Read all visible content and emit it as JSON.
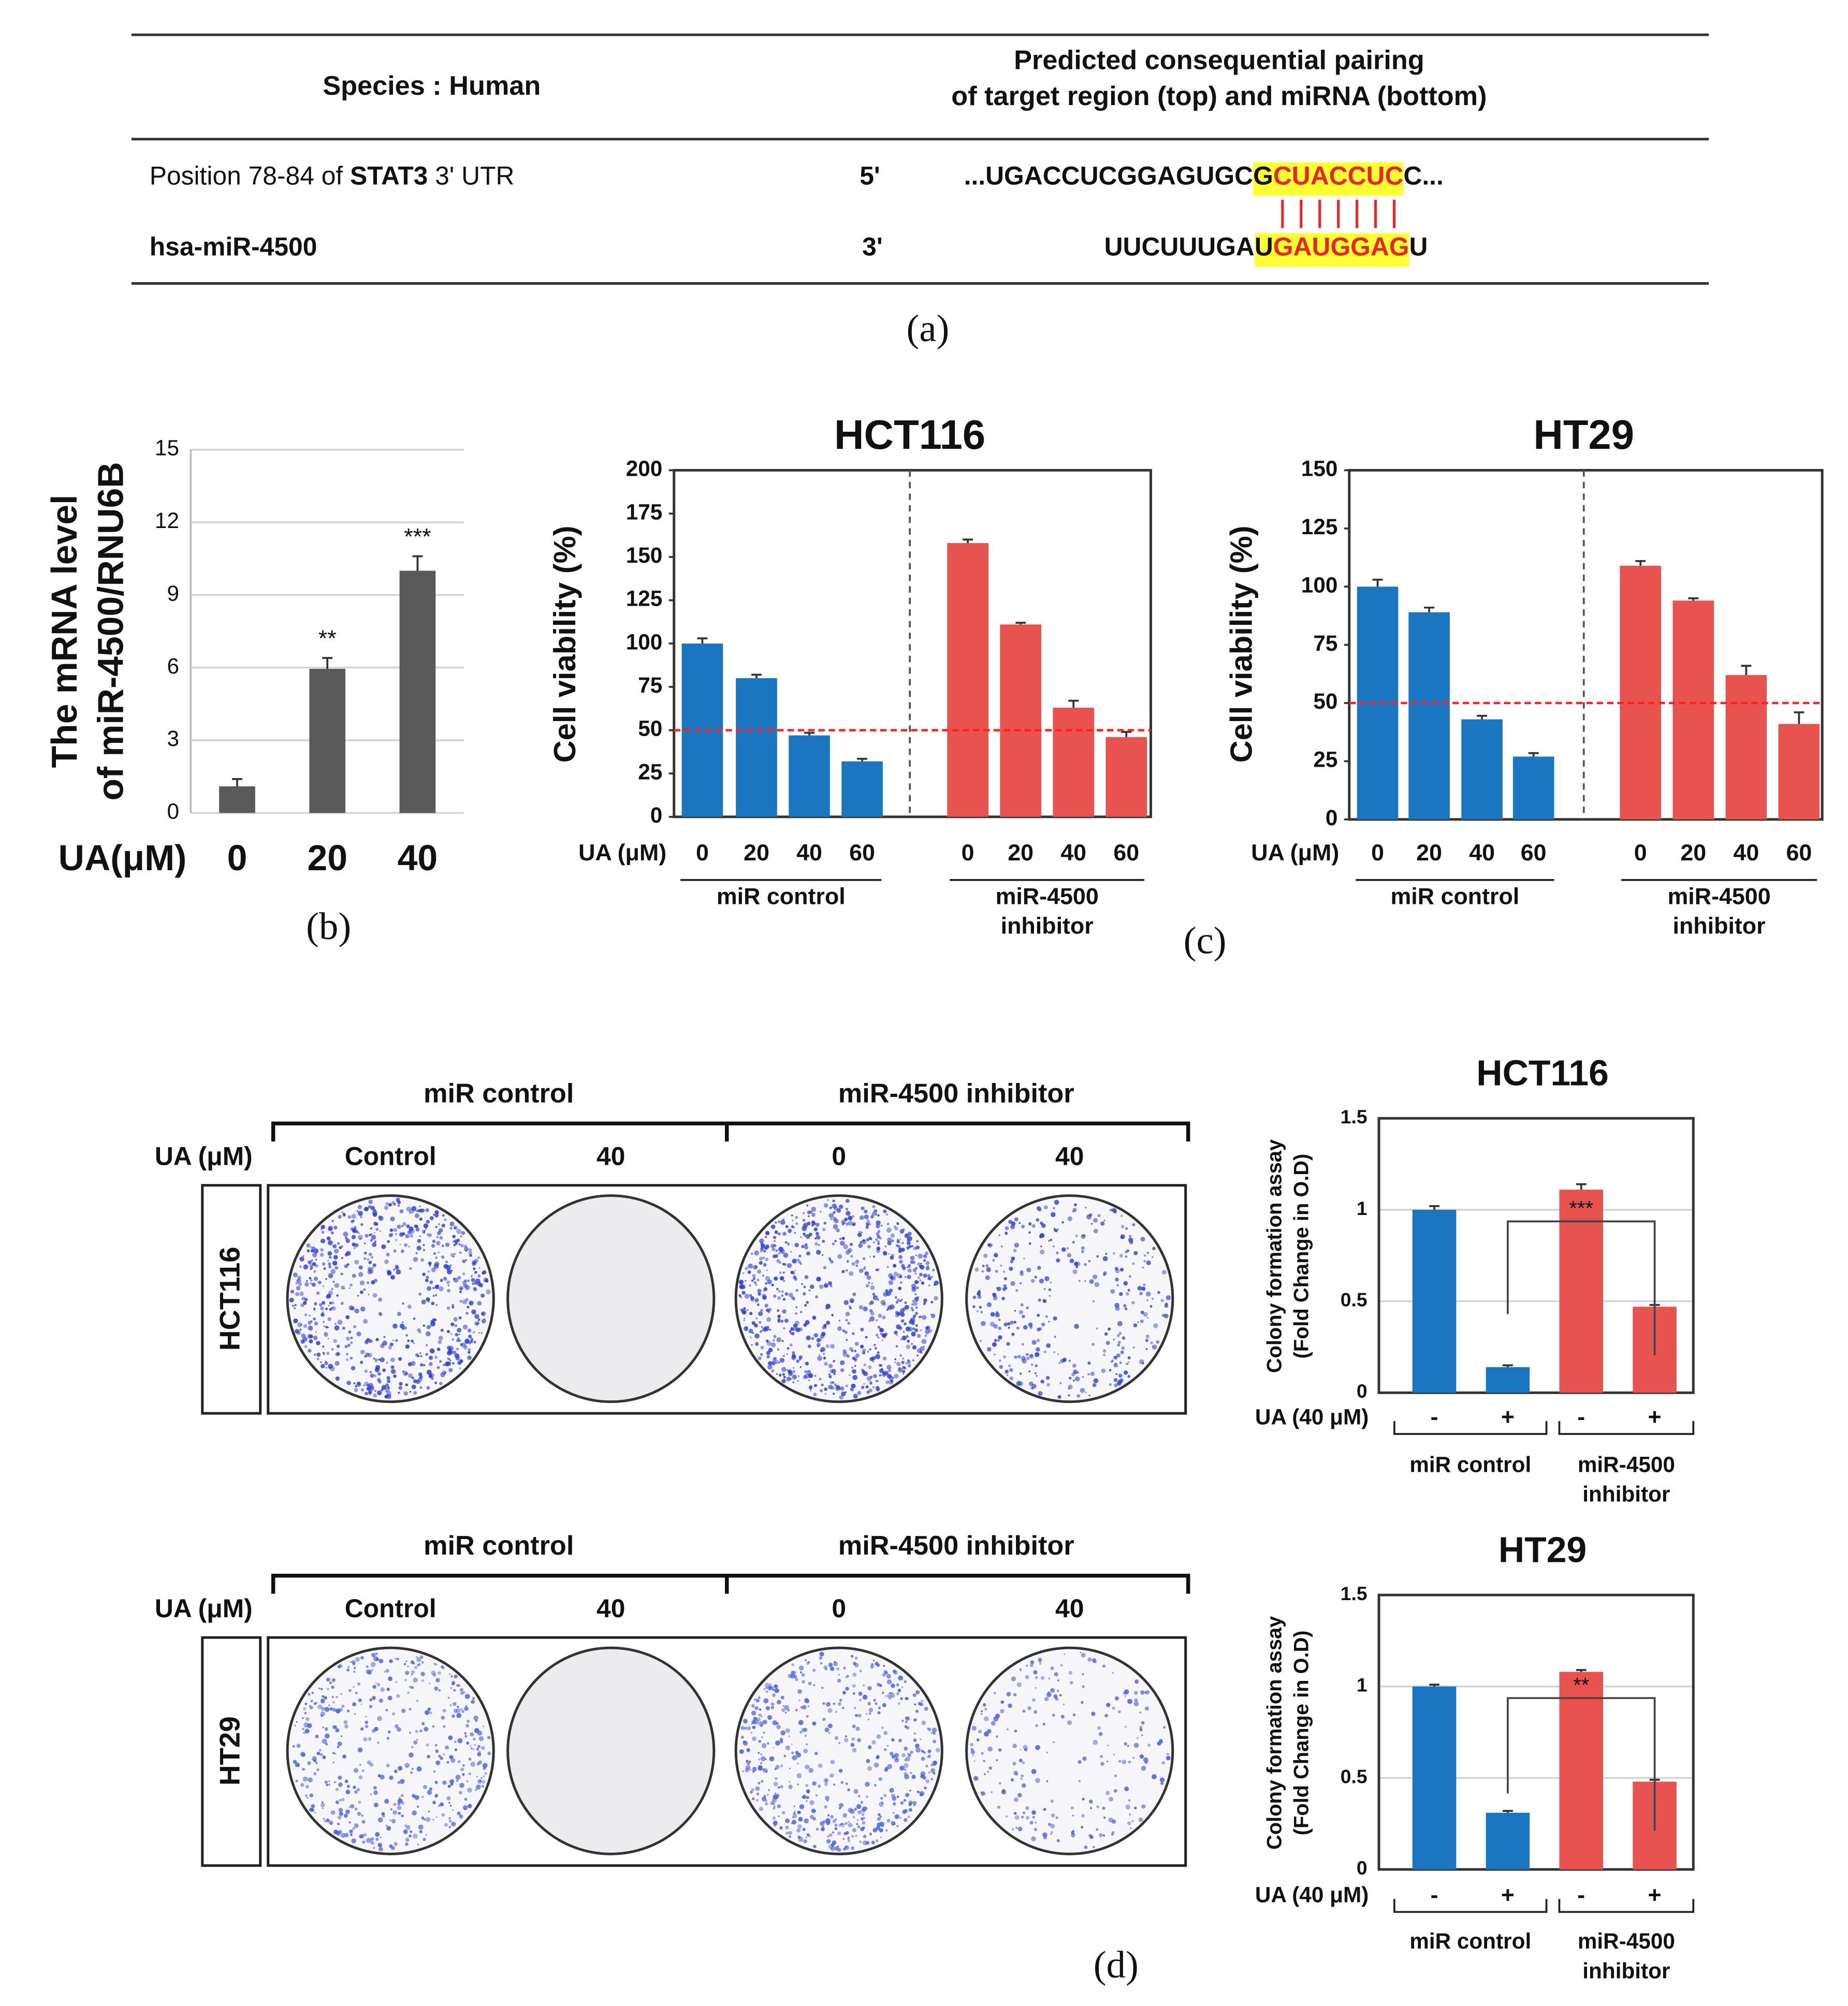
{
  "panel_a": {
    "header": {
      "species": "Species : Human",
      "pairing": [
        "Predicted consequential pairing",
        "of target region (top) and miRNA (bottom)"
      ]
    },
    "rows": [
      {
        "label": [
          "Position 78-84 of ",
          "STAT3",
          " 3' UTR"
        ],
        "end": "5'",
        "sequence": [
          "...UGACCUCGGAGUGC",
          "G",
          "CUACCUC",
          "C..."
        ]
      },
      {
        "label": [
          "hsa-miR-4500"
        ],
        "end": "3'",
        "sequence": [
          "UUCUUUGA",
          "U",
          "GAUGGAG",
          "U"
        ]
      }
    ],
    "caption": "(a)"
  },
  "captions": {
    "b": "(b)",
    "c": "(c)",
    "d": "(d)"
  },
  "plates": [
    {
      "groups": [
        "miR control",
        "miR-4500 inhibitor"
      ],
      "dose_label": "UA (μM)",
      "doses": [
        "Control",
        "40",
        "0",
        "40"
      ],
      "cell_line": "HCT116"
    },
    {
      "groups": [
        "miR control",
        "miR-4500 inhibitor"
      ],
      "dose_label": "UA (μM)",
      "doses": [
        "Control",
        "40",
        "0",
        "40"
      ],
      "cell_line": "HT29"
    }
  ],
  "chart_data": [
    {
      "type": "bar",
      "ylabel": [
        "The mRNA level",
        "of miR-4500/RNU6B"
      ],
      "xlabel": "UA(μM)",
      "categories": [
        "0",
        "20",
        "40"
      ],
      "values": [
        1.1,
        5.95,
        10
      ],
      "errors": [
        0.3,
        0.45,
        0.6
      ],
      "color": "#5a5a5a",
      "annotations": [
        null,
        "**",
        "***"
      ],
      "ylim": [
        0,
        15
      ],
      "yticks": [
        0,
        3,
        6,
        9,
        12,
        15
      ],
      "grid": true
    },
    {
      "type": "bar",
      "title": "HCT116",
      "ylabel": "Cell viability (%)",
      "xlabel": "UA (μM)",
      "categories": [
        "0",
        "20",
        "40",
        "60"
      ],
      "series": [
        {
          "name": "miR control",
          "color": "#1b76c2",
          "values": [
            100,
            80,
            47,
            32
          ],
          "errors": [
            3,
            2,
            1.5,
            1.5
          ]
        },
        {
          "name": [
            "miR-4500",
            "inhibitor"
          ],
          "color": "#e8524f",
          "values": [
            158,
            111,
            63,
            46
          ],
          "errors": [
            2,
            1,
            4,
            3
          ]
        }
      ],
      "reference_line": 50,
      "reference_color": "#ff2020",
      "ylim": [
        0,
        200
      ],
      "yticks": [
        0,
        25,
        50,
        75,
        100,
        125,
        150,
        175,
        200
      ],
      "grid": false
    },
    {
      "type": "bar",
      "title": "HT29",
      "ylabel": "Cell viability (%)",
      "xlabel": "UA (μM)",
      "categories": [
        "0",
        "20",
        "40",
        "60"
      ],
      "series": [
        {
          "name": "miR control",
          "color": "#1b76c2",
          "values": [
            100,
            89,
            43,
            27
          ],
          "errors": [
            3,
            2,
            1.5,
            1.5
          ]
        },
        {
          "name": [
            "miR-4500",
            "inhibitor"
          ],
          "color": "#e8524f",
          "values": [
            109,
            94,
            62,
            41
          ],
          "errors": [
            2,
            1,
            4,
            5
          ]
        }
      ],
      "reference_line": 50,
      "reference_color": "#ff2020",
      "ylim": [
        0,
        150
      ],
      "yticks": [
        0,
        25,
        50,
        75,
        100,
        125,
        150
      ],
      "grid": false
    },
    {
      "type": "bar",
      "title": "HCT116",
      "ylabel": [
        "Colony formation assay",
        "(Fold Change in O.D)"
      ],
      "xlabel": "UA (40 μM)",
      "categories": [
        "-",
        "+"
      ],
      "series": [
        {
          "name": "miR control",
          "color": "#1b76c2",
          "values": [
            1.0,
            0.14
          ],
          "errors": [
            0.02,
            0.01
          ]
        },
        {
          "name": [
            "miR-4500",
            "inhibitor"
          ],
          "color": "#e8524f",
          "values": [
            1.11,
            0.47
          ],
          "errors": [
            0.03,
            0.01
          ]
        }
      ],
      "significance": "***",
      "ylim": [
        0,
        1.5
      ],
      "yticks": [
        0,
        0.5,
        1,
        1.5
      ],
      "grid": true
    },
    {
      "type": "bar",
      "title": "HT29",
      "ylabel": [
        "Colony formation assay",
        "(Fold Change in O.D)"
      ],
      "xlabel": "UA (40 μM)",
      "categories": [
        "-",
        "+"
      ],
      "series": [
        {
          "name": "miR control",
          "color": "#1b76c2",
          "values": [
            1.0,
            0.31
          ],
          "errors": [
            0.01,
            0.01
          ]
        },
        {
          "name": [
            "miR-4500",
            "inhibitor"
          ],
          "color": "#e8524f",
          "values": [
            1.08,
            0.48
          ],
          "errors": [
            0.01,
            0.01
          ]
        }
      ],
      "significance": "**",
      "ylim": [
        0,
        1.5
      ],
      "yticks": [
        0,
        0.5,
        1,
        1.5
      ],
      "grid": true
    }
  ]
}
